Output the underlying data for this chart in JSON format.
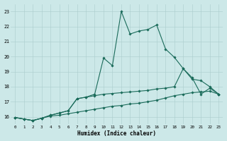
{
  "xlabel": "Humidex (Indice chaleur)",
  "bg_color": "#cce8e8",
  "grid_color": "#aacccc",
  "line_color": "#1a6b5a",
  "xlim": [
    -0.5,
    23.5
  ],
  "ylim": [
    15.5,
    23.5
  ],
  "xticks": [
    0,
    1,
    2,
    3,
    4,
    5,
    6,
    7,
    8,
    9,
    10,
    11,
    12,
    13,
    14,
    15,
    16,
    17,
    18,
    19,
    20,
    21,
    22,
    23
  ],
  "yticks": [
    16,
    17,
    18,
    19,
    20,
    21,
    22,
    23
  ],
  "line1_x": [
    0,
    1,
    2,
    3,
    4,
    5,
    6,
    7,
    8,
    9,
    10,
    11,
    12,
    13,
    14,
    15,
    16,
    17,
    18,
    19,
    20,
    21,
    22,
    23
  ],
  "line1_y": [
    15.95,
    15.85,
    15.75,
    15.9,
    16.1,
    16.25,
    16.4,
    17.2,
    17.3,
    17.5,
    19.9,
    19.4,
    23.0,
    21.5,
    21.7,
    21.8,
    22.1,
    20.5,
    19.95,
    19.2,
    18.6,
    17.5,
    17.9,
    17.5
  ],
  "line2_x": [
    0,
    1,
    2,
    3,
    4,
    5,
    6,
    7,
    8,
    9,
    10,
    11,
    12,
    13,
    14,
    15,
    16,
    17,
    18,
    19,
    20,
    21,
    22,
    23
  ],
  "line2_y": [
    15.95,
    15.85,
    15.75,
    15.9,
    16.1,
    16.25,
    16.4,
    17.2,
    17.3,
    17.4,
    17.5,
    17.55,
    17.6,
    17.65,
    17.7,
    17.75,
    17.85,
    17.9,
    18.0,
    19.2,
    18.5,
    18.4,
    18.0,
    17.5
  ],
  "line3_x": [
    0,
    1,
    2,
    3,
    4,
    5,
    6,
    7,
    8,
    9,
    10,
    11,
    12,
    13,
    14,
    15,
    16,
    17,
    18,
    19,
    20,
    21,
    22,
    23
  ],
  "line3_y": [
    15.95,
    15.85,
    15.75,
    15.9,
    16.05,
    16.1,
    16.2,
    16.3,
    16.4,
    16.5,
    16.6,
    16.7,
    16.75,
    16.85,
    16.9,
    17.0,
    17.1,
    17.25,
    17.4,
    17.5,
    17.6,
    17.65,
    17.7,
    17.5
  ]
}
